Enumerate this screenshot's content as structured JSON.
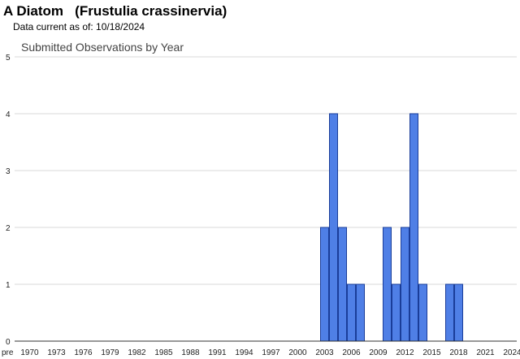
{
  "header": {
    "title": "A Diatom   (Frustulia crassinervia)",
    "data_date": "Data current as of: 10/18/2024"
  },
  "colors": {
    "bar_fill": "#4f7fe6",
    "bar_stroke": "#1a3d99",
    "grid": "#d9d9d9"
  },
  "chart_data": {
    "type": "bar",
    "title": "Submitted Observations by Year",
    "xlabel": "",
    "ylabel": "",
    "ylim": [
      0,
      5
    ],
    "y_ticks": [
      "0",
      "1",
      "2",
      "3",
      "4",
      "5"
    ],
    "grid": true,
    "legend": "none",
    "x_tick_labels": [
      "pre",
      "1970",
      "1973",
      "1976",
      "1979",
      "1982",
      "1985",
      "1988",
      "1991",
      "1994",
      "1997",
      "2000",
      "2003",
      "2006",
      "2009",
      "2012",
      "2015",
      "2018",
      "2021",
      "2024"
    ],
    "categories": [
      "pre",
      "1970",
      "1971",
      "1972",
      "1973",
      "1974",
      "1975",
      "1976",
      "1977",
      "1978",
      "1979",
      "1980",
      "1981",
      "1982",
      "1983",
      "1984",
      "1985",
      "1986",
      "1987",
      "1988",
      "1989",
      "1990",
      "1991",
      "1992",
      "1993",
      "1994",
      "1995",
      "1996",
      "1997",
      "1998",
      "1999",
      "2000",
      "2001",
      "2002",
      "2003",
      "2004",
      "2005",
      "2006",
      "2007",
      "2008",
      "2009",
      "2010",
      "2011",
      "2012",
      "2013",
      "2014",
      "2015",
      "2016",
      "2017",
      "2018",
      "2019",
      "2020",
      "2021",
      "2022",
      "2023",
      "2024"
    ],
    "values": [
      0,
      0,
      0,
      0,
      0,
      0,
      0,
      0,
      0,
      0,
      0,
      0,
      0,
      0,
      0,
      0,
      0,
      0,
      0,
      0,
      0,
      0,
      0,
      0,
      0,
      0,
      0,
      0,
      0,
      0,
      0,
      0,
      0,
      0,
      2,
      4,
      2,
      1,
      1,
      0,
      0,
      2,
      1,
      2,
      4,
      1,
      0,
      0,
      1,
      1,
      0,
      0,
      0,
      0,
      0,
      0
    ]
  }
}
